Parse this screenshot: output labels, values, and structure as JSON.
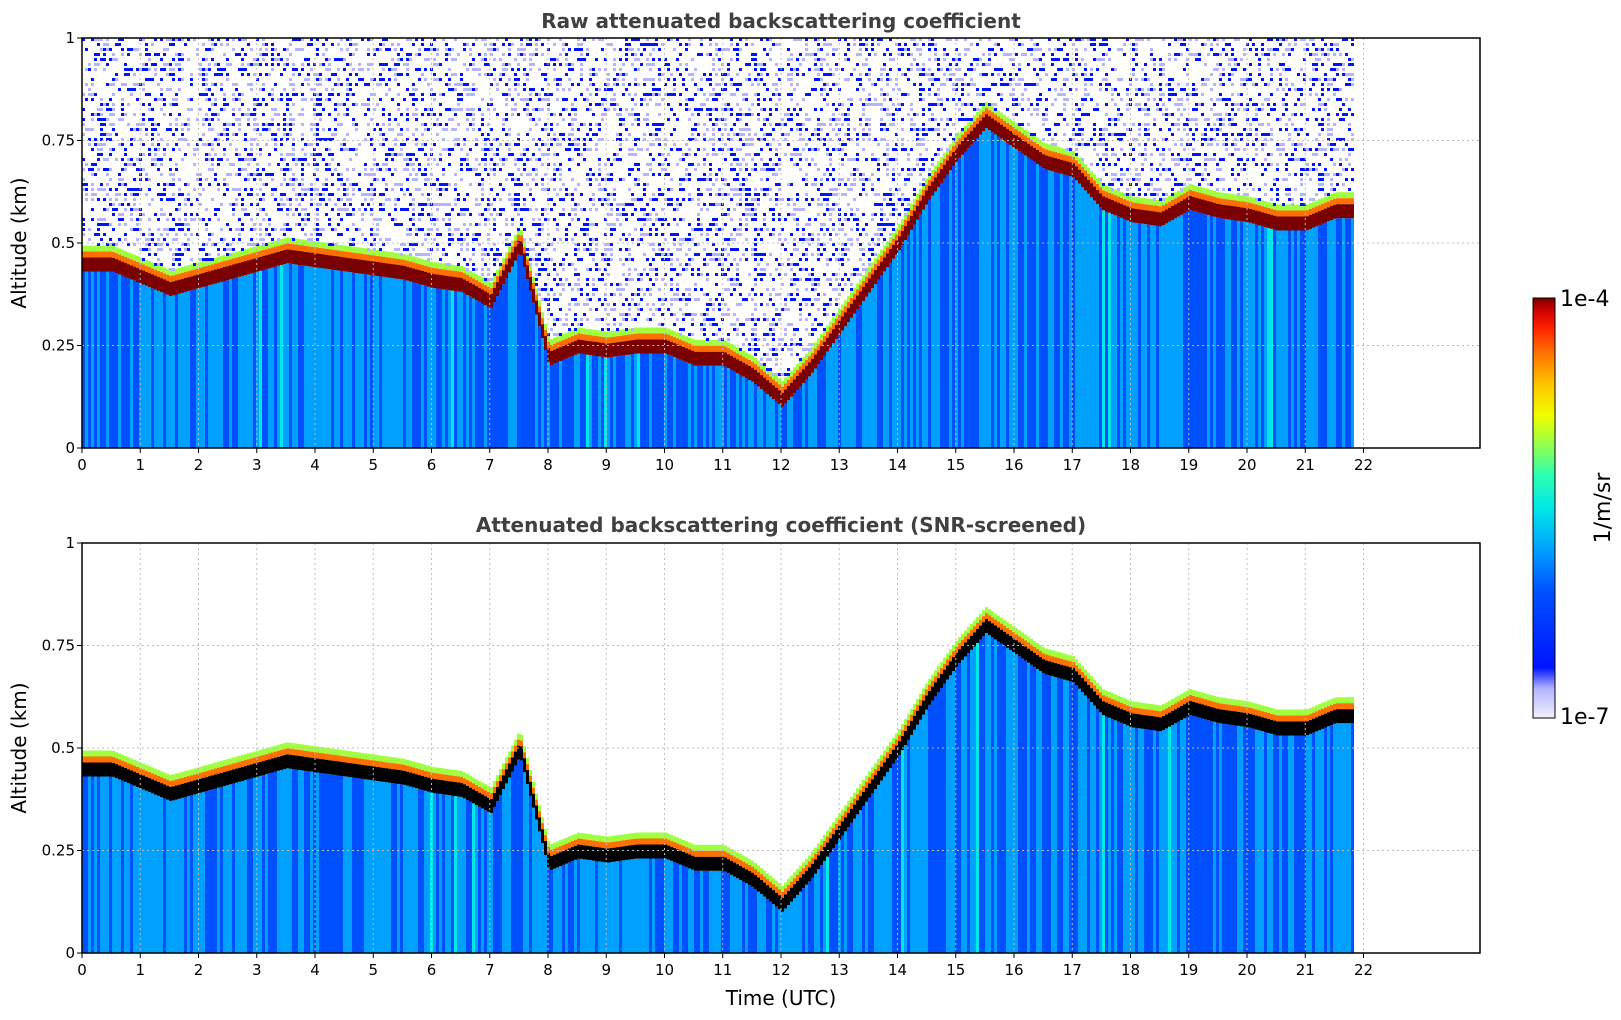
{
  "chart_data": [
    {
      "type": "heatmap",
      "title": "Raw attenuated backscattering coefficient",
      "xlabel": "",
      "ylabel": "Altitude (km)",
      "xlim": [
        0,
        24
      ],
      "ylim": [
        0,
        1
      ],
      "xticks": [
        "0",
        "1",
        "2",
        "3",
        "4",
        "5",
        "6",
        "7",
        "8",
        "9",
        "10",
        "11",
        "12",
        "13",
        "14",
        "15",
        "16",
        "17",
        "18",
        "19",
        "20",
        "21",
        "22"
      ],
      "yticks": [
        "0",
        "0.25",
        "0.5",
        "0.75",
        "1"
      ],
      "grid": true,
      "data_end_time": 21.8,
      "cloud_layer": {
        "time": [
          0,
          0.5,
          1,
          1.5,
          2,
          2.5,
          3,
          3.5,
          4,
          4.5,
          5,
          5.5,
          6,
          6.5,
          7,
          7.5,
          8,
          8.5,
          9,
          9.5,
          10,
          10.5,
          11,
          11.5,
          12,
          12.5,
          13,
          13.5,
          14,
          14.5,
          15,
          15.5,
          16,
          16.5,
          17,
          17.5,
          18,
          18.5,
          19,
          19.5,
          20,
          20.5,
          21,
          21.5,
          21.8
        ],
        "altitude_km": [
          0.45,
          0.45,
          0.42,
          0.39,
          0.41,
          0.43,
          0.45,
          0.47,
          0.46,
          0.45,
          0.44,
          0.43,
          0.41,
          0.4,
          0.36,
          0.5,
          0.22,
          0.25,
          0.24,
          0.25,
          0.25,
          0.22,
          0.22,
          0.18,
          0.12,
          0.2,
          0.3,
          0.4,
          0.5,
          0.62,
          0.72,
          0.8,
          0.75,
          0.7,
          0.68,
          0.6,
          0.57,
          0.56,
          0.6,
          0.58,
          0.57,
          0.55,
          0.55,
          0.58,
          0.58
        ]
      }
    },
    {
      "type": "heatmap",
      "title": "Attenuated backscattering coefficient (SNR-screened)",
      "xlabel": "Time (UTC)",
      "ylabel": "Altitude (km)",
      "xlim": [
        0,
        24
      ],
      "ylim": [
        0,
        1
      ],
      "xticks": [
        "0",
        "1",
        "2",
        "3",
        "4",
        "5",
        "6",
        "7",
        "8",
        "9",
        "10",
        "11",
        "12",
        "13",
        "14",
        "15",
        "16",
        "17",
        "18",
        "19",
        "20",
        "21",
        "22"
      ],
      "yticks": [
        "0",
        "0.25",
        "0.5",
        "0.75",
        "1"
      ],
      "grid": true,
      "data_end_time": 21.8,
      "cloud_layer": {
        "time": [
          0,
          0.5,
          1,
          1.5,
          2,
          2.5,
          3,
          3.5,
          4,
          4.5,
          5,
          5.5,
          6,
          6.5,
          7,
          7.5,
          8,
          8.5,
          9,
          9.5,
          10,
          10.5,
          11,
          11.5,
          12,
          12.5,
          13,
          13.5,
          14,
          14.5,
          15,
          15.5,
          16,
          16.5,
          17,
          17.5,
          18,
          18.5,
          19,
          19.5,
          20,
          20.5,
          21,
          21.5,
          21.8
        ],
        "altitude_km": [
          0.45,
          0.45,
          0.42,
          0.39,
          0.41,
          0.43,
          0.45,
          0.47,
          0.46,
          0.45,
          0.44,
          0.43,
          0.41,
          0.4,
          0.36,
          0.5,
          0.22,
          0.25,
          0.24,
          0.25,
          0.25,
          0.22,
          0.22,
          0.18,
          0.12,
          0.2,
          0.3,
          0.4,
          0.5,
          0.62,
          0.72,
          0.8,
          0.75,
          0.7,
          0.68,
          0.6,
          0.57,
          0.56,
          0.6,
          0.58,
          0.57,
          0.55,
          0.55,
          0.58,
          0.58
        ]
      }
    }
  ],
  "colorbar": {
    "label": "1/m/sr",
    "max_label": "1e-4",
    "min_label": "1e-7",
    "colormap": [
      "#f0f0ff",
      "#b4b4ff",
      "#0014ff",
      "#0050ff",
      "#00a0ff",
      "#00e8e8",
      "#30ffb0",
      "#a0ff40",
      "#f0ff00",
      "#ffc000",
      "#ff7000",
      "#ff2000",
      "#d00000",
      "#7a0000"
    ]
  }
}
